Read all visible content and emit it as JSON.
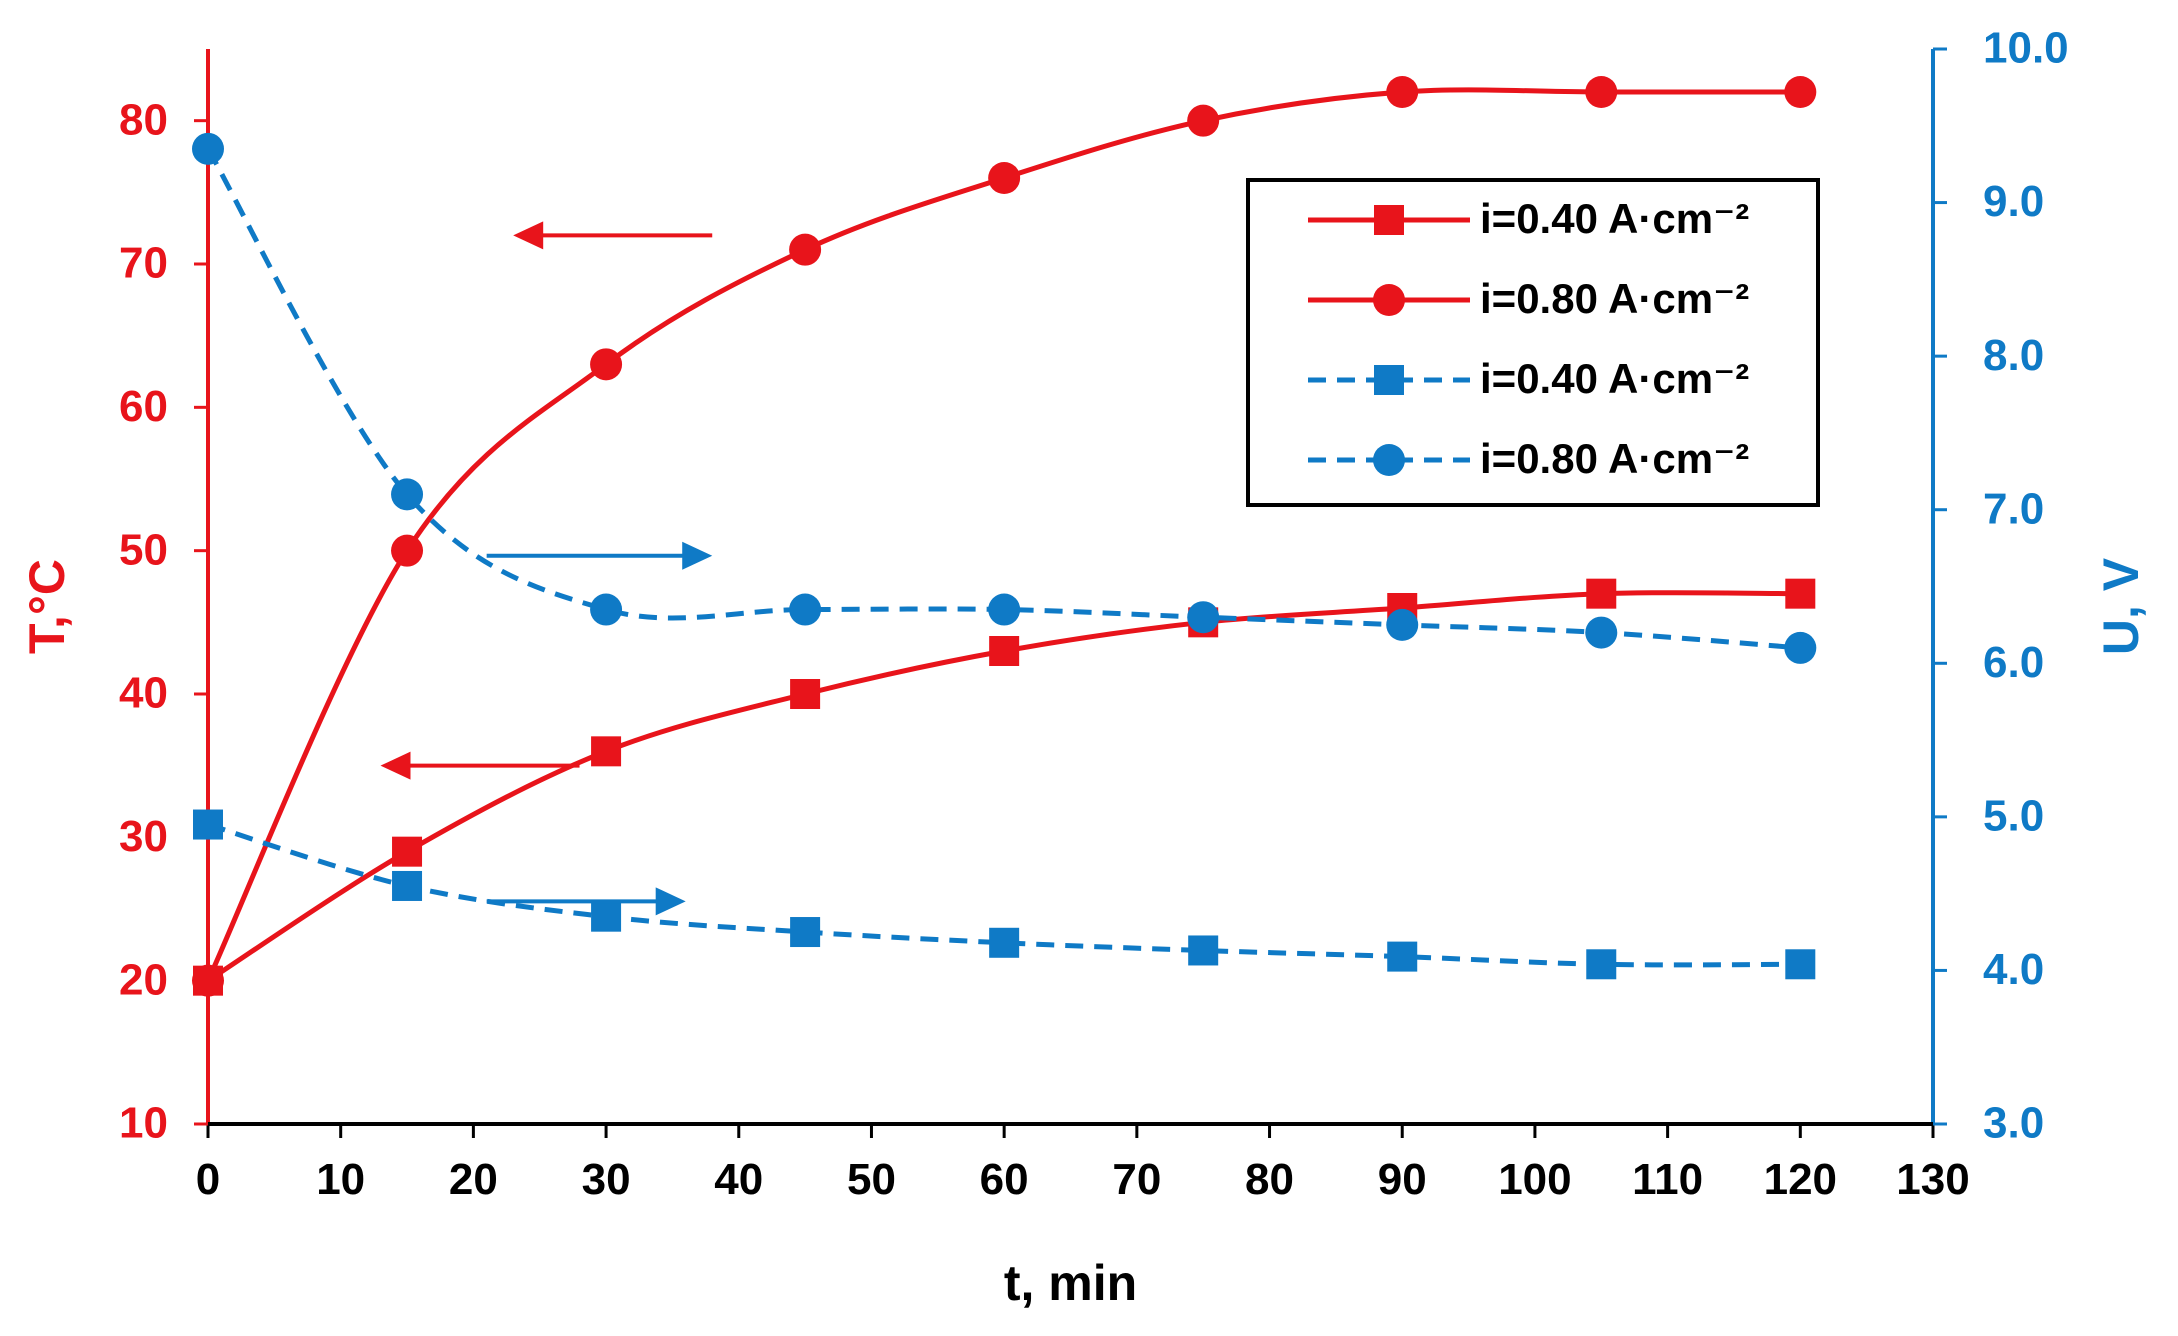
{
  "colors": {
    "red": "#E8141B",
    "blue": "#0F7AC6",
    "black": "#000000"
  },
  "chart_data": {
    "type": "line",
    "xlabel": "t, min",
    "ylabel_left": "T,°C",
    "ylabel_right": "U, V",
    "xlim": [
      0,
      130
    ],
    "ylim_left": [
      10,
      85
    ],
    "ylim_right": [
      3.0,
      10.0
    ],
    "x_ticks": [
      "0",
      "10",
      "20",
      "30",
      "40",
      "50",
      "60",
      "70",
      "80",
      "90",
      "100",
      "110",
      "120",
      "130"
    ],
    "y_left_ticks": [
      "10",
      "20",
      "30",
      "40",
      "50",
      "60",
      "70",
      "80"
    ],
    "y_right_ticks": [
      "3.0",
      "4.0",
      "5.0",
      "6.0",
      "7.0",
      "8.0",
      "9.0",
      "10.0"
    ],
    "legend_position": "top-right",
    "series": [
      {
        "name": "i=0.40 A·cm⁻²",
        "axis": "left",
        "quantity": "T",
        "marker": "square",
        "line": "solid",
        "color": "#E8141B",
        "x": [
          0,
          15,
          30,
          45,
          60,
          75,
          90,
          105,
          120
        ],
        "y": [
          20,
          29,
          36,
          40,
          43,
          45,
          46,
          47,
          47
        ]
      },
      {
        "name": "i=0.80 A·cm⁻²",
        "axis": "left",
        "quantity": "T",
        "marker": "circle",
        "line": "solid",
        "color": "#E8141B",
        "x": [
          0,
          15,
          30,
          45,
          60,
          75,
          90,
          105,
          120
        ],
        "y": [
          20,
          50,
          63,
          71,
          76,
          80,
          82,
          82,
          82
        ]
      },
      {
        "name": "i=0.40 A·cm⁻²",
        "axis": "right",
        "quantity": "U",
        "marker": "square",
        "line": "dashed",
        "color": "#0F7AC6",
        "x": [
          0,
          15,
          30,
          45,
          60,
          75,
          90,
          105,
          120
        ],
        "y": [
          4.95,
          4.55,
          4.35,
          4.25,
          4.18,
          4.13,
          4.09,
          4.04,
          4.04
        ]
      },
      {
        "name": "i=0.80 A·cm⁻²",
        "axis": "right",
        "quantity": "U",
        "marker": "circle",
        "line": "dashed",
        "color": "#0F7AC6",
        "x": [
          0,
          15,
          30,
          45,
          60,
          75,
          90,
          105,
          120
        ],
        "y": [
          9.35,
          7.1,
          6.35,
          6.35,
          6.35,
          6.3,
          6.25,
          6.2,
          6.1
        ]
      }
    ],
    "annotations": [
      {
        "type": "arrow",
        "direction": "left",
        "color": "#E8141B",
        "axis": "left",
        "x_from": 38,
        "x_to": 23,
        "y": 72
      },
      {
        "type": "arrow",
        "direction": "right",
        "color": "#0F7AC6",
        "axis": "right",
        "x_from": 21,
        "x_to": 38,
        "y": 6.7
      },
      {
        "type": "arrow",
        "direction": "left",
        "color": "#E8141B",
        "axis": "left",
        "x_from": 28,
        "x_to": 13,
        "y": 35
      },
      {
        "type": "arrow",
        "direction": "right",
        "color": "#0F7AC6",
        "axis": "right",
        "x_from": 21,
        "x_to": 36,
        "y": 4.45
      }
    ]
  }
}
